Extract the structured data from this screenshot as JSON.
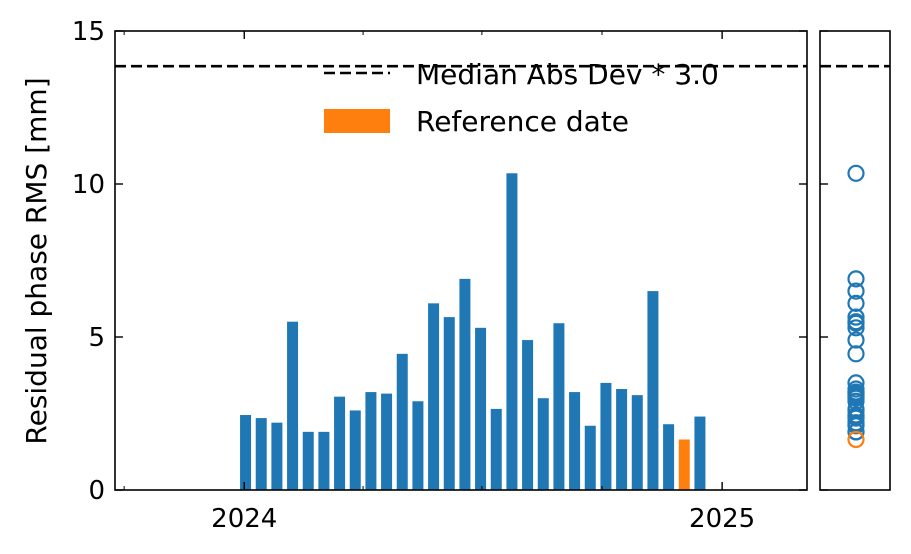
{
  "chart_data": [
    {
      "type": "bar",
      "ylabel": "Residual phase RMS [mm]",
      "ylim": [
        0,
        15
      ],
      "y_ticks": [
        "0",
        "5",
        "10",
        "15"
      ],
      "x_ticks": [
        {
          "label": "2024",
          "date": "2024-01-01"
        },
        {
          "label": "2025",
          "date": "2025-01-01"
        }
      ],
      "xlim": [
        "2023-09-24",
        "2025-03-07"
      ],
      "grid": false,
      "legend_position": "top-right",
      "legend": {
        "threshold_label": "Median Abs Dev * 3.0",
        "reference_label": "Reference date"
      },
      "threshold": 13.85,
      "colors": {
        "bar": "#1f77b4",
        "reference": "#ff7f0e",
        "threshold": "#000000"
      },
      "x": [
        "2024-01-02",
        "2024-01-14",
        "2024-01-26",
        "2024-02-07",
        "2024-02-19",
        "2024-03-02",
        "2024-03-14",
        "2024-03-26",
        "2024-04-07",
        "2024-04-19",
        "2024-05-01",
        "2024-05-13",
        "2024-05-25",
        "2024-06-06",
        "2024-06-18",
        "2024-06-30",
        "2024-07-12",
        "2024-07-24",
        "2024-08-05",
        "2024-08-17",
        "2024-08-29",
        "2024-09-10",
        "2024-09-22",
        "2024-10-04",
        "2024-10-16",
        "2024-10-28",
        "2024-11-09",
        "2024-11-21",
        "2024-12-03",
        "2024-12-15"
      ],
      "values": [
        2.45,
        2.35,
        2.2,
        5.5,
        1.9,
        1.9,
        3.05,
        2.6,
        3.2,
        3.15,
        4.45,
        2.9,
        6.1,
        5.65,
        6.9,
        5.3,
        2.65,
        10.35,
        4.9,
        3.0,
        5.45,
        3.2,
        2.1,
        3.5,
        3.3,
        3.1,
        6.5,
        2.15,
        1.65,
        2.4
      ],
      "reference_date": "2024-12-03"
    },
    {
      "type": "scatter",
      "ylim": [
        0,
        15
      ],
      "values": [
        2.45,
        2.35,
        2.2,
        5.5,
        1.9,
        1.9,
        3.05,
        2.6,
        3.2,
        3.15,
        4.45,
        2.9,
        6.1,
        5.65,
        6.9,
        5.3,
        2.65,
        10.35,
        4.9,
        3.0,
        5.45,
        3.2,
        2.1,
        3.5,
        3.3,
        3.1,
        6.5,
        2.15,
        1.65,
        2.4
      ],
      "reference_value": 1.65,
      "threshold": 13.85
    }
  ]
}
